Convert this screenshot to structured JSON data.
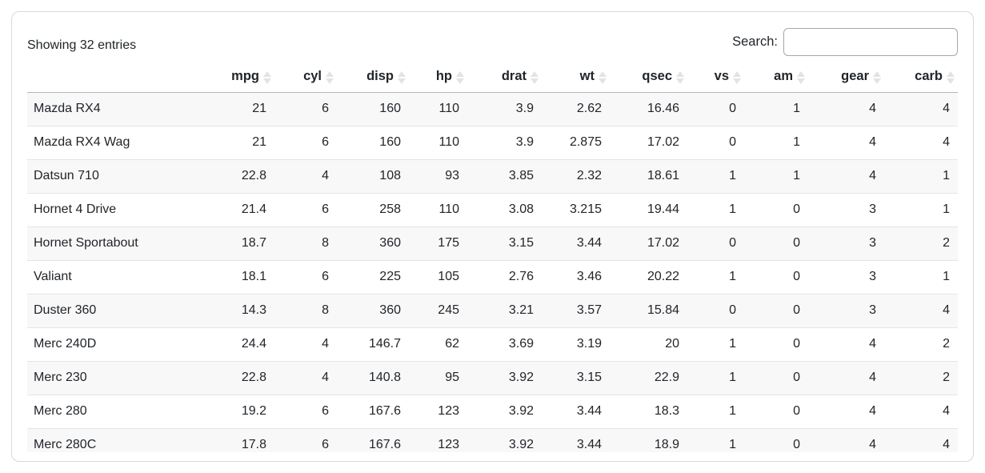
{
  "toolbar": {
    "showing_text": "Showing 32 entries",
    "search_label": "Search:",
    "search_value": "",
    "search_placeholder": ""
  },
  "table": {
    "row_header_label": "",
    "columns": [
      "mpg",
      "cyl",
      "disp",
      "hp",
      "drat",
      "wt",
      "qsec",
      "vs",
      "am",
      "gear",
      "carb"
    ],
    "rows": [
      {
        "name": "Mazda RX4",
        "values": [
          "21",
          "6",
          "160",
          "110",
          "3.9",
          "2.62",
          "16.46",
          "0",
          "1",
          "4",
          "4"
        ]
      },
      {
        "name": "Mazda RX4 Wag",
        "values": [
          "21",
          "6",
          "160",
          "110",
          "3.9",
          "2.875",
          "17.02",
          "0",
          "1",
          "4",
          "4"
        ]
      },
      {
        "name": "Datsun 710",
        "values": [
          "22.8",
          "4",
          "108",
          "93",
          "3.85",
          "2.32",
          "18.61",
          "1",
          "1",
          "4",
          "1"
        ]
      },
      {
        "name": "Hornet 4 Drive",
        "values": [
          "21.4",
          "6",
          "258",
          "110",
          "3.08",
          "3.215",
          "19.44",
          "1",
          "0",
          "3",
          "1"
        ]
      },
      {
        "name": "Hornet Sportabout",
        "values": [
          "18.7",
          "8",
          "360",
          "175",
          "3.15",
          "3.44",
          "17.02",
          "0",
          "0",
          "3",
          "2"
        ]
      },
      {
        "name": "Valiant",
        "values": [
          "18.1",
          "6",
          "225",
          "105",
          "2.76",
          "3.46",
          "20.22",
          "1",
          "0",
          "3",
          "1"
        ]
      },
      {
        "name": "Duster 360",
        "values": [
          "14.3",
          "8",
          "360",
          "245",
          "3.21",
          "3.57",
          "15.84",
          "0",
          "0",
          "3",
          "4"
        ]
      },
      {
        "name": "Merc 240D",
        "values": [
          "24.4",
          "4",
          "146.7",
          "62",
          "3.69",
          "3.19",
          "20",
          "1",
          "0",
          "4",
          "2"
        ]
      },
      {
        "name": "Merc 230",
        "values": [
          "22.8",
          "4",
          "140.8",
          "95",
          "3.92",
          "3.15",
          "22.9",
          "1",
          "0",
          "4",
          "2"
        ]
      },
      {
        "name": "Merc 280",
        "values": [
          "19.2",
          "6",
          "167.6",
          "123",
          "3.92",
          "3.44",
          "18.3",
          "1",
          "0",
          "4",
          "4"
        ]
      },
      {
        "name": "Merc 280C",
        "values": [
          "17.8",
          "6",
          "167.6",
          "123",
          "3.92",
          "3.44",
          "18.9",
          "1",
          "0",
          "4",
          "4"
        ]
      }
    ]
  },
  "colors": {
    "text": "#212529",
    "card_border": "#d6d9dc",
    "header_border": "#b4b7ba",
    "row_border": "#e3e5e7",
    "stripe": "#f8f8f9",
    "sort_icon": "#e3e3e5",
    "input_border": "#a6a6a6"
  }
}
